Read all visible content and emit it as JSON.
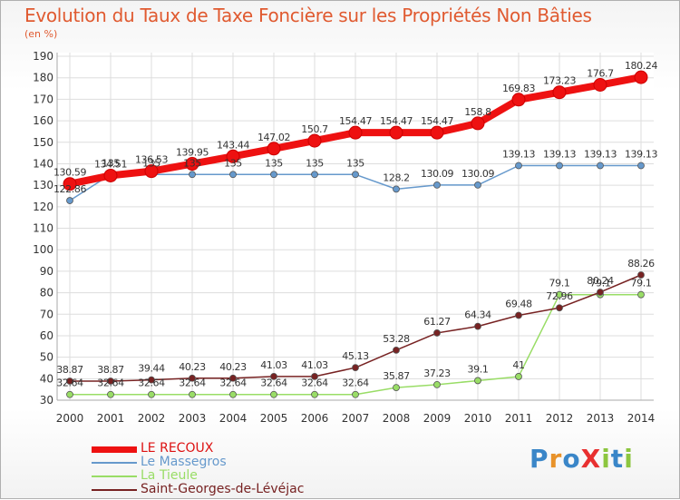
{
  "title": "Evolution du Taux de Taxe Foncière sur les Propriétés Non Bâties",
  "unit": "(en %)",
  "logo": {
    "text": "ProXiti",
    "letter_colors": [
      "#3a86c8",
      "#e8922a",
      "#3a86c8",
      "#e83030",
      "#8cc63f",
      "#3a86c8",
      "#8cc63f"
    ]
  },
  "chart_data": {
    "type": "line",
    "x": [
      2000,
      2001,
      2002,
      2003,
      2004,
      2005,
      2006,
      2007,
      2008,
      2009,
      2010,
      2011,
      2012,
      2013,
      2014
    ],
    "ylim": [
      30,
      190
    ],
    "yticks": [
      30,
      40,
      50,
      60,
      70,
      80,
      90,
      100,
      110,
      120,
      130,
      140,
      150,
      160,
      170,
      180,
      190
    ],
    "grid": true,
    "legend_position": "bottom-left",
    "series": [
      {
        "name": "LE RECOUX",
        "color": "#ee1111",
        "values": [
          130.59,
          134.51,
          136.53,
          139.95,
          143.44,
          147.02,
          150.7,
          154.47,
          154.47,
          154.47,
          158.8,
          169.83,
          173.23,
          176.7,
          180.24
        ],
        "labels": [
          "130.59",
          "134.51",
          "136.53",
          "139.95",
          "143.44",
          "147.02",
          "150.7",
          "154.47",
          "154.47",
          "154.47",
          "158.8",
          "169.83",
          "173.23",
          "176.7",
          "180.24"
        ]
      },
      {
        "name": "Le Massegros",
        "color": "#6699cc",
        "values": [
          122.86,
          135,
          135,
          135,
          135,
          135,
          135,
          135,
          128.2,
          130.09,
          130.09,
          139.13,
          139.13,
          139.13,
          139.13
        ],
        "labels": [
          "122.86",
          "135",
          "135",
          "135",
          "135",
          "135",
          "135",
          "135",
          "128.2",
          "130.09",
          "130.09",
          "139.13",
          "139.13",
          "139.13",
          "139.13"
        ]
      },
      {
        "name": "La Tieule",
        "color": "#99dd66",
        "values": [
          32.64,
          32.64,
          32.64,
          32.64,
          32.64,
          32.64,
          32.64,
          32.64,
          35.87,
          37.23,
          39.1,
          41,
          79.1,
          79.1,
          79.1
        ],
        "labels": [
          "32.64",
          "32.64",
          "32.64",
          "32.64",
          "32.64",
          "32.64",
          "32.64",
          "32.64",
          "35.87",
          "37.23",
          "39.1",
          "41",
          "79.1",
          "79.1",
          "79.1"
        ]
      },
      {
        "name": "Saint-Georges-de-Lévéjac",
        "color": "#772222",
        "values": [
          38.87,
          38.87,
          39.44,
          40.23,
          40.23,
          41.03,
          41.03,
          45.13,
          53.28,
          61.27,
          64.34,
          69.48,
          72.96,
          80.24,
          88.26
        ],
        "labels": [
          "38.87",
          "38.87",
          "39.44",
          "40.23",
          "40.23",
          "41.03",
          "41.03",
          "45.13",
          "53.28",
          "61.27",
          "64.34",
          "69.48",
          "72.96",
          "80.24",
          "88.26"
        ]
      }
    ]
  }
}
